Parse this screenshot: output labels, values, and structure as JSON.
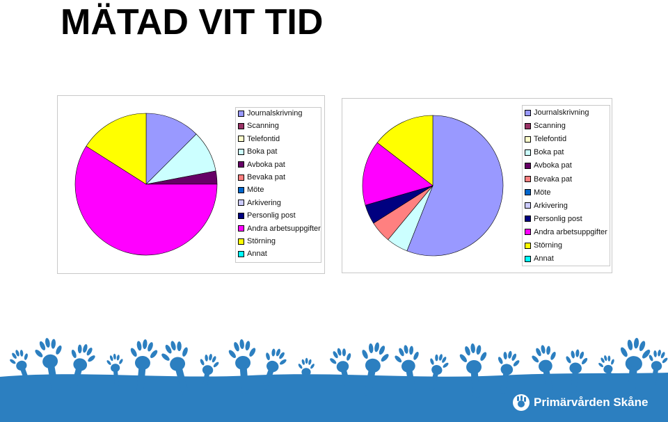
{
  "title": "MÄTAD VIT TID",
  "brand": {
    "name": "Primärvården Skåne",
    "logo_icon": "hand-logo-icon"
  },
  "colors": {
    "footer_blue": "#2c7fc0",
    "hand_blue": "#2c7fc0"
  },
  "chart_data": [
    {
      "type": "pie",
      "title": "",
      "legend_position": "right",
      "categories": [
        "Journalskrivning",
        "Scanning",
        "Telefontid",
        "Boka pat",
        "Avboka pat",
        "Bevaka pat",
        "Möte",
        "Arkivering",
        "Personlig post",
        "Andra arbetsuppgifter",
        "Störning",
        "Annat"
      ],
      "colors": [
        "#9999ff",
        "#993366",
        "#ffffcc",
        "#ccffff",
        "#660066",
        "#ff8080",
        "#0066cc",
        "#ccccff",
        "#000080",
        "#ff00ff",
        "#ffff00",
        "#00ffff"
      ],
      "values": [
        12.5,
        0,
        0,
        9.5,
        3,
        0,
        0,
        0,
        0,
        59,
        16,
        0
      ]
    },
    {
      "type": "pie",
      "title": "",
      "legend_position": "right",
      "categories": [
        "Journalskrivning",
        "Scanning",
        "Telefontid",
        "Boka pat",
        "Avboka pat",
        "Bevaka pat",
        "Möte",
        "Arkivering",
        "Personlig post",
        "Andra arbetsuppgifter",
        "Störning",
        "Annat"
      ],
      "colors": [
        "#9999ff",
        "#993366",
        "#ffffcc",
        "#ccffff",
        "#660066",
        "#ff8080",
        "#0066cc",
        "#ccccff",
        "#000080",
        "#ff00ff",
        "#ffff00",
        "#00ffff"
      ],
      "values": [
        56,
        0,
        0,
        5,
        0,
        5,
        0,
        0,
        4.5,
        15,
        14.5,
        0
      ]
    }
  ]
}
